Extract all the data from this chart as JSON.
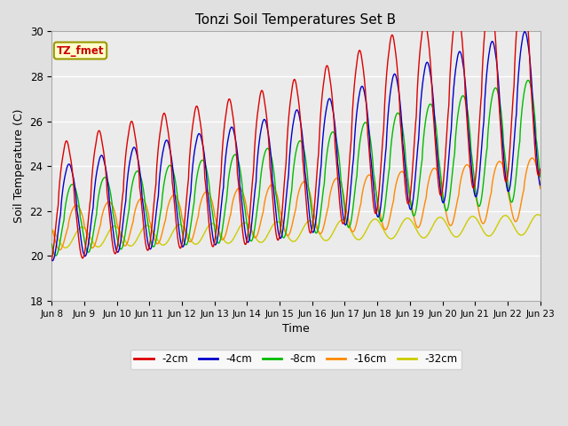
{
  "title": "Tonzi Soil Temperatures Set B",
  "xlabel": "Time",
  "ylabel": "Soil Temperature (C)",
  "ylim": [
    18,
    30
  ],
  "annotation": "TZ_fmet",
  "annotation_color": "#cc0000",
  "annotation_bg": "#ffffcc",
  "annotation_border": "#999900",
  "fig_bg": "#e0e0e0",
  "plot_bg": "#ebebeb",
  "legend_entries": [
    "-2cm",
    "-4cm",
    "-8cm",
    "-16cm",
    "-32cm"
  ],
  "line_colors": [
    "#dd0000",
    "#0000cc",
    "#00bb00",
    "#ff8800",
    "#cccc00"
  ],
  "xtick_labels": [
    "Jun 8",
    "Jun 9",
    "Jun 10",
    "Jun 11",
    "Jun 12",
    "Jun 13",
    "Jun 14",
    "Jun 15",
    "Jun 16",
    "Jun 17",
    "Jun 18",
    "Jun 19",
    "Jun 20",
    "Jun 21",
    "Jun 22",
    "Jun 23"
  ]
}
